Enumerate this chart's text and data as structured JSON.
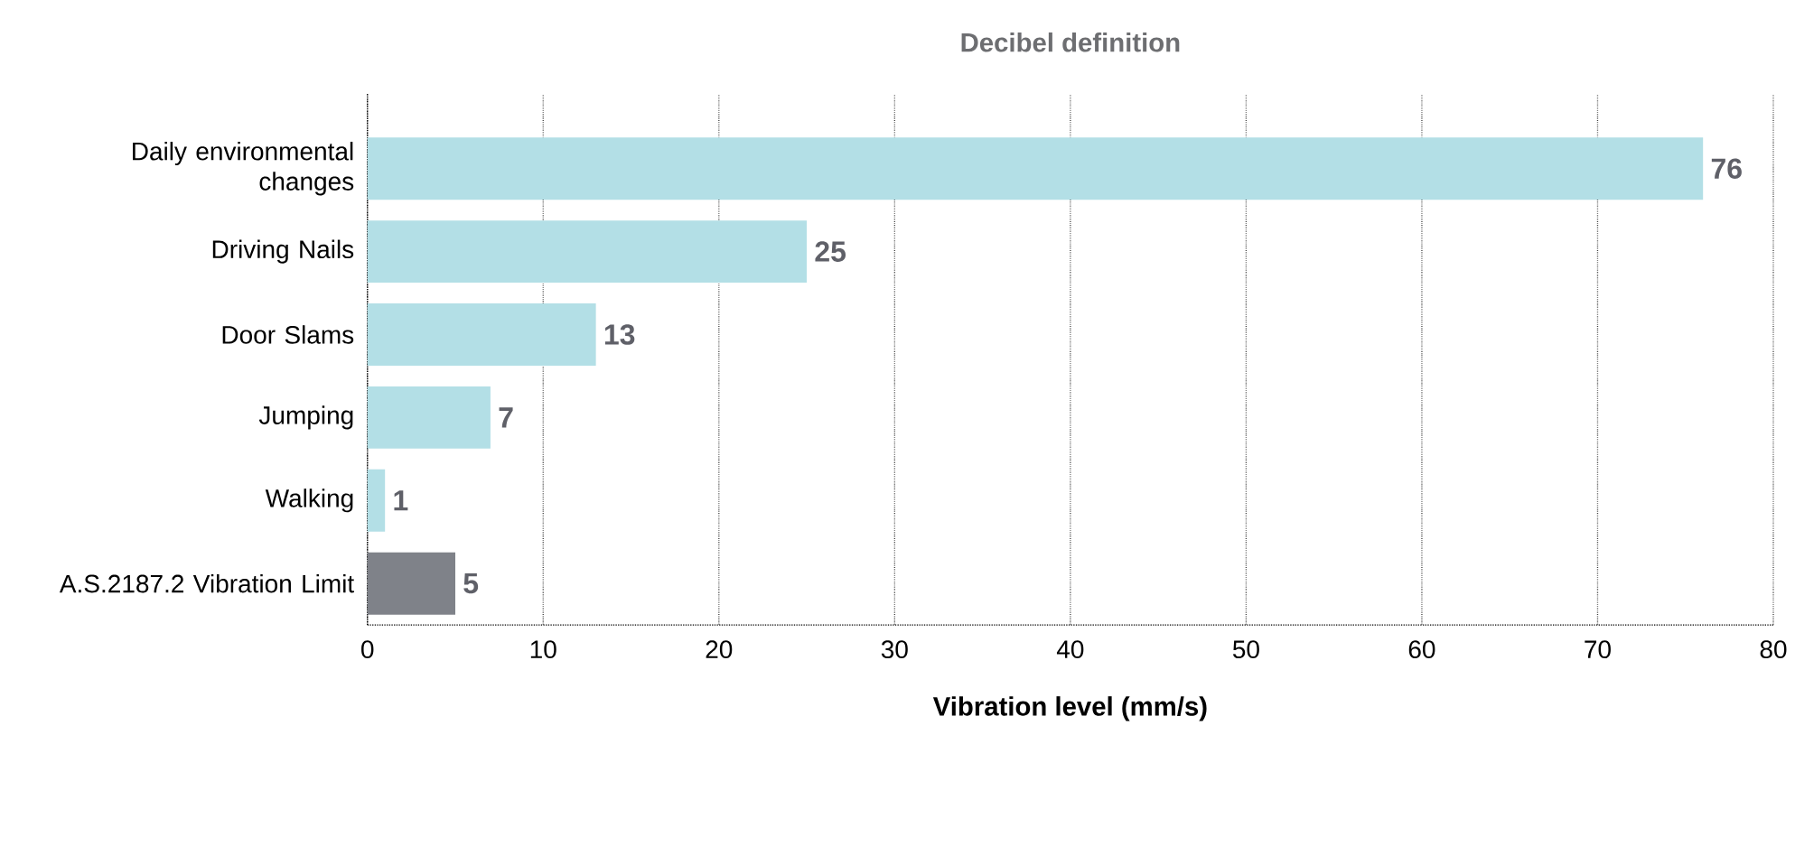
{
  "chart_data": {
    "type": "bar",
    "orientation": "horizontal",
    "title": "Decibel definition",
    "xlabel": "Vibration level (mm/s)",
    "categories": [
      "Daily environmental changes",
      "Driving Nails",
      "Door Slams",
      "Jumping",
      "Walking",
      "A.S.2187.2 Vibration Limit"
    ],
    "values": [
      76,
      25,
      13,
      7,
      1,
      5
    ],
    "colors": [
      "#b3dfe6",
      "#b3dfe6",
      "#b3dfe6",
      "#b3dfe6",
      "#b3dfe6",
      "#7f8289"
    ],
    "xlim": [
      0,
      80
    ],
    "xticks": [
      0,
      10,
      20,
      30,
      40,
      50,
      60,
      70,
      80
    ],
    "grid": "x",
    "data_labels": true
  }
}
